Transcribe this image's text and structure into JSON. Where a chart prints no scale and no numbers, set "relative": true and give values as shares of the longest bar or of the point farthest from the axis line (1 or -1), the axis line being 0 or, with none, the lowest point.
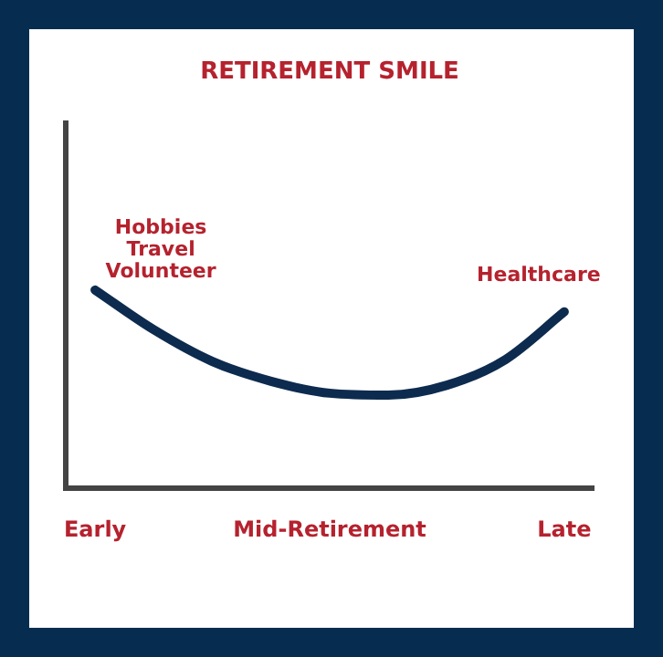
{
  "chart_data": {
    "type": "line",
    "title": "RETIREMENT SMILE",
    "relative": true,
    "categories": [
      "Early",
      null,
      null,
      null,
      "Mid-Retirement",
      null,
      null,
      null,
      "Late"
    ],
    "values": [
      1,
      0.8,
      0.64,
      0.54,
      0.48,
      0.47,
      0.52,
      0.65,
      0.89
    ],
    "color": "#0d2b4e",
    "marker": "none",
    "line_style": "solid",
    "grid": false,
    "legend": false,
    "annotations": [
      "Hobbies\nTravel\nVolunteer",
      "Healthcare"
    ]
  }
}
